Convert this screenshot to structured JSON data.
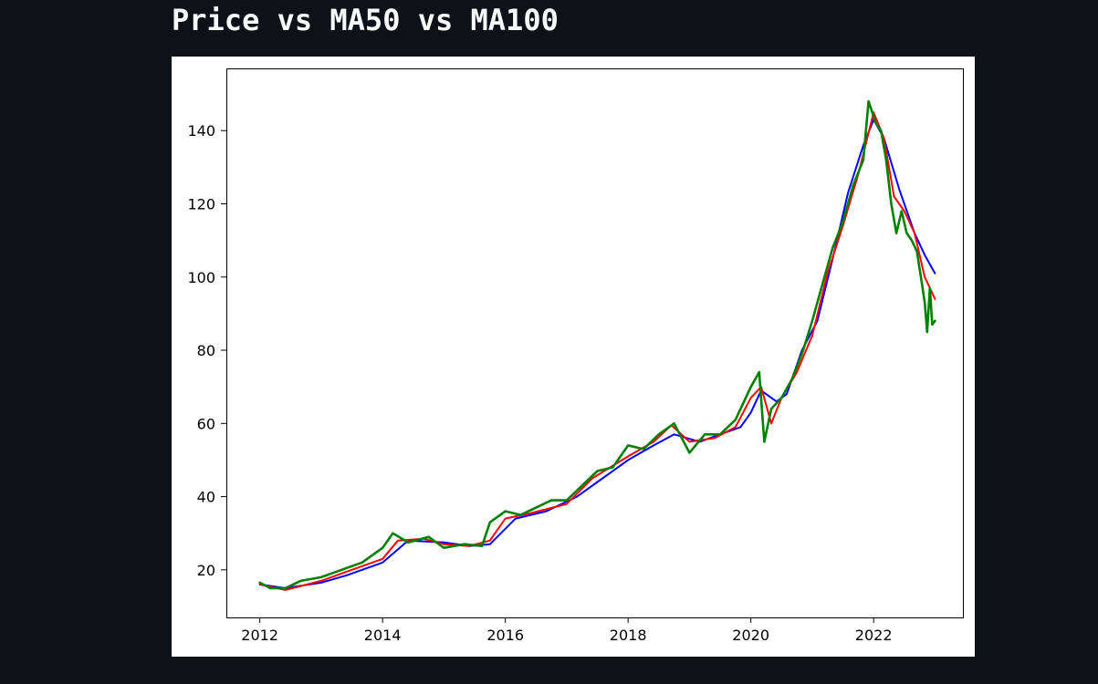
{
  "page": {
    "title": "Price vs MA50 vs MA100"
  },
  "colors": {
    "background": "#0e1117",
    "title": "#fafafa",
    "figure": "#ffffff",
    "price": "#008000",
    "ma50": "#ff0000",
    "ma100": "#0000ff"
  },
  "chart_data": {
    "type": "line",
    "title": "",
    "xlabel": "",
    "ylabel": "",
    "xlim": [
      "2011-06-15",
      "2023-06-15"
    ],
    "ylim": [
      7,
      157
    ],
    "grid": false,
    "legend": "none",
    "x_ticks": [
      "2012",
      "2014",
      "2016",
      "2018",
      "2020",
      "2022"
    ],
    "y_ticks": [
      20,
      40,
      60,
      80,
      100,
      120,
      140
    ],
    "series": [
      {
        "key": "price",
        "color": "#008000",
        "x": [
          "2012-01-01",
          "2012-03-01",
          "2012-06-01",
          "2012-09-01",
          "2013-01-01",
          "2013-05-01",
          "2013-09-01",
          "2014-01-01",
          "2014-03-01",
          "2014-06-01",
          "2014-10-01",
          "2015-01-01",
          "2015-05-01",
          "2015-08-15",
          "2015-10-01",
          "2016-01-01",
          "2016-04-01",
          "2016-07-01",
          "2016-10-01",
          "2017-01-01",
          "2017-04-01",
          "2017-07-01",
          "2017-10-01",
          "2018-01-01",
          "2018-04-01",
          "2018-07-01",
          "2018-10-01",
          "2019-01-01",
          "2019-04-01",
          "2019-07-01",
          "2019-10-01",
          "2020-01-01",
          "2020-02-20",
          "2020-03-20",
          "2020-05-01",
          "2020-07-01",
          "2020-09-01",
          "2020-11-01",
          "2021-01-01",
          "2021-03-01",
          "2021-05-01",
          "2021-07-01",
          "2021-09-01",
          "2021-11-01",
          "2021-12-01",
          "2022-01-15",
          "2022-02-15",
          "2022-03-15",
          "2022-04-15",
          "2022-05-15",
          "2022-06-15",
          "2022-07-15",
          "2022-08-15",
          "2022-09-15",
          "2022-10-15",
          "2022-11-01",
          "2022-11-15",
          "2022-12-01",
          "2022-12-15",
          "2023-01-01"
        ],
        "y": [
          16.5,
          15,
          15,
          17,
          18,
          20,
          22,
          26,
          30,
          27.5,
          29,
          26,
          27,
          26.5,
          33,
          36,
          35,
          37,
          39,
          39,
          43,
          47,
          48,
          54,
          53,
          57,
          60,
          52,
          57,
          57,
          61,
          70,
          74,
          55,
          64,
          67,
          72,
          79,
          88,
          98,
          108,
          115,
          125,
          132,
          148,
          142,
          140,
          132,
          120,
          112,
          118,
          112,
          110,
          107,
          98,
          93,
          85,
          97,
          87,
          88
        ]
      },
      {
        "key": "ma50",
        "color": "#ff0000",
        "x": [
          "2012-01-01",
          "2012-06-01",
          "2013-01-01",
          "2013-06-01",
          "2014-01-01",
          "2014-04-01",
          "2014-09-01",
          "2015-01-01",
          "2015-06-01",
          "2015-10-01",
          "2016-01-01",
          "2016-06-01",
          "2017-01-01",
          "2017-06-01",
          "2018-01-01",
          "2018-06-01",
          "2018-09-15",
          "2019-01-01",
          "2019-06-01",
          "2019-10-01",
          "2020-01-01",
          "2020-03-01",
          "2020-05-01",
          "2020-07-01",
          "2020-10-01",
          "2021-01-01",
          "2021-04-01",
          "2021-07-01",
          "2021-10-01",
          "2022-01-01",
          "2022-03-01",
          "2022-05-01",
          "2022-07-01",
          "2022-09-01",
          "2022-11-01",
          "2023-01-01"
        ],
        "y": [
          16,
          14.5,
          17,
          19.5,
          23,
          28,
          28.5,
          27,
          26.5,
          28,
          34,
          35.5,
          38,
          45,
          51,
          55,
          59.5,
          55,
          56,
          59,
          67,
          70,
          60,
          67,
          74,
          84,
          101,
          114,
          128,
          145,
          138,
          122,
          118,
          112,
          100,
          94
        ]
      },
      {
        "key": "ma100",
        "color": "#0000ff",
        "x": [
          "2012-01-01",
          "2012-06-01",
          "2013-01-01",
          "2013-06-01",
          "2014-01-01",
          "2014-06-01",
          "2015-01-01",
          "2015-06-01",
          "2015-10-01",
          "2016-03-01",
          "2016-09-01",
          "2017-03-01",
          "2017-09-01",
          "2018-01-01",
          "2018-06-01",
          "2018-10-01",
          "2019-03-01",
          "2019-07-01",
          "2019-11-01",
          "2020-01-01",
          "2020-03-01",
          "2020-06-01",
          "2020-08-01",
          "2020-11-01",
          "2021-02-01",
          "2021-05-01",
          "2021-08-01",
          "2021-11-01",
          "2022-01-01",
          "2022-03-01",
          "2022-06-01",
          "2022-09-01",
          "2022-11-01",
          "2023-01-01"
        ],
        "y": [
          16,
          15,
          16.5,
          18.5,
          22,
          28,
          27.5,
          26.5,
          27,
          34,
          36,
          40,
          46,
          50,
          54,
          57,
          55,
          57,
          59,
          63,
          69,
          66,
          68,
          80,
          88,
          105,
          123,
          136,
          143,
          138,
          124,
          112,
          106,
          101
        ]
      }
    ]
  }
}
